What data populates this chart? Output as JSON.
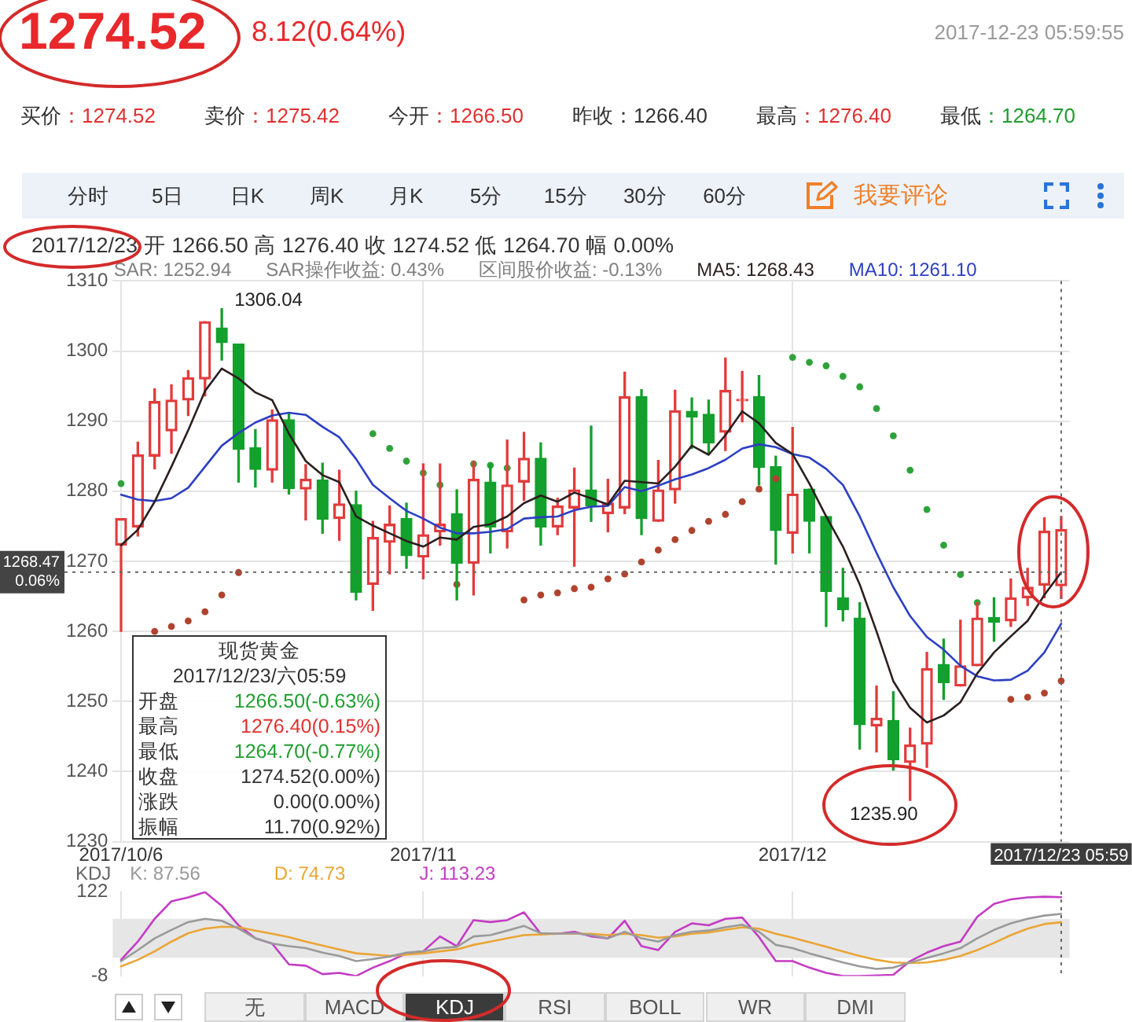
{
  "chart_data": [
    {
      "type": "other",
      "title": "1274.52",
      "subtitle": "8.12(0.64%)",
      "annotations": [
        "2017-12-23 05:59:55"
      ],
      "categories": [
        "买价",
        "卖价",
        "今开",
        "昨收",
        "最高",
        "最低"
      ],
      "value_labels": [
        "：1274.52",
        "：1275.42",
        "：1266.50",
        "：1266.40",
        "：1276.40",
        "：1264.70"
      ],
      "colors": [
        "#e0312f",
        "#e0312f",
        "#e0312f",
        "#333333",
        "#e0312f",
        "#1f9e2f"
      ]
    },
    {
      "type": "other",
      "annotations": [
        "分时",
        "5日",
        "日K",
        "周K",
        "月K",
        "5分",
        "15分",
        "30分",
        "60分",
        "我要评论"
      ]
    },
    {
      "type": "candlestick",
      "title": "2017/12/23 开 1266.50 高 1276.40 收 1274.52 低 1264.70 幅 0.00%",
      "categories": [
        "2017/10/6",
        null,
        null,
        null,
        null,
        null,
        null,
        null,
        null,
        null,
        null,
        null,
        null,
        null,
        null,
        null,
        null,
        null,
        "2017/11",
        null,
        null,
        null,
        null,
        null,
        null,
        null,
        null,
        null,
        null,
        null,
        null,
        null,
        null,
        null,
        null,
        null,
        null,
        null,
        null,
        null,
        "2017/12",
        null,
        null,
        null,
        null,
        null,
        null,
        null,
        null,
        null,
        null,
        null,
        null,
        null,
        null,
        null,
        "2017/12/23 05:59"
      ],
      "ohlc": [
        [
          1272.3,
          1276.1,
          1260.0,
          1276.1
        ],
        [
          1274.9,
          1287.0,
          1273.6,
          1285.2
        ],
        [
          1285.0,
          1294.6,
          1283.2,
          1292.8
        ],
        [
          1288.6,
          1295.2,
          1285.4,
          1293.0
        ],
        [
          1293.0,
          1297.2,
          1290.8,
          1296.2
        ],
        [
          1296.0,
          1304.2,
          1293.6,
          1304.2
        ],
        [
          1303.3,
          1306.04,
          1298.7,
          1301.2
        ],
        [
          1301.0,
          1301.0,
          1281.3,
          1286.0
        ],
        [
          1286.2,
          1288.8,
          1280.6,
          1283.1
        ],
        [
          1283.0,
          1291.6,
          1281.3,
          1290.2
        ],
        [
          1290.2,
          1291.0,
          1279.6,
          1280.4
        ],
        [
          1280.3,
          1283.8,
          1275.9,
          1281.7
        ],
        [
          1281.6,
          1284.0,
          1274.0,
          1276.0
        ],
        [
          1276.1,
          1283.0,
          1273.0,
          1278.2
        ],
        [
          1278.1,
          1280.0,
          1264.5,
          1265.6
        ],
        [
          1266.7,
          1275.7,
          1263.0,
          1273.4
        ],
        [
          1272.7,
          1277.9,
          1268.2,
          1275.3
        ],
        [
          1276.1,
          1278.3,
          1269.0,
          1270.8
        ],
        [
          1270.6,
          1283.9,
          1267.5,
          1273.8
        ],
        [
          1274.2,
          1283.9,
          1272.3,
          1275.3
        ],
        [
          1276.8,
          1280.2,
          1264.5,
          1269.7
        ],
        [
          1269.7,
          1284.3,
          1265.2,
          1281.7
        ],
        [
          1281.3,
          1283.9,
          1271.2,
          1274.9
        ],
        [
          1274.2,
          1287.3,
          1271.9,
          1280.9
        ],
        [
          1281.3,
          1288.4,
          1278.7,
          1284.7
        ],
        [
          1284.7,
          1286.9,
          1272.3,
          1274.9
        ],
        [
          1274.9,
          1279.0,
          1273.8,
          1277.9
        ],
        [
          1277.6,
          1283.3,
          1269.3,
          1280.2
        ],
        [
          1280.2,
          1289.3,
          1275.7,
          1277.9
        ],
        [
          1276.8,
          1281.7,
          1274.2,
          1278.3
        ],
        [
          1277.6,
          1297.0,
          1276.8,
          1293.5
        ],
        [
          1293.5,
          1294.5,
          1273.8,
          1276.1
        ],
        [
          1275.7,
          1284.4,
          1275.7,
          1280.2
        ],
        [
          1280.2,
          1294.4,
          1278.3,
          1291.5
        ],
        [
          1291.4,
          1293.3,
          1286.1,
          1290.6
        ],
        [
          1291.0,
          1293.0,
          1285.4,
          1286.9
        ],
        [
          1288.4,
          1299.0,
          1285.8,
          1294.4
        ],
        [
          1292.9,
          1297.1,
          1289.9,
          1293.0
        ],
        [
          1293.5,
          1296.5,
          1280.9,
          1283.4
        ],
        [
          1283.5,
          1285.0,
          1269.6,
          1274.4
        ],
        [
          1274.0,
          1289.1,
          1271.2,
          1279.6
        ],
        [
          1280.3,
          1280.3,
          1271.2,
          1275.7
        ],
        [
          1276.4,
          1276.4,
          1260.7,
          1265.7
        ],
        [
          1264.8,
          1269.0,
          1261.5,
          1263.1
        ],
        [
          1261.9,
          1264.1,
          1243.2,
          1246.7
        ],
        [
          1246.5,
          1252.2,
          1242.8,
          1247.6
        ],
        [
          1247.3,
          1251.4,
          1240.2,
          1241.7
        ],
        [
          1241.3,
          1246.2,
          1235.9,
          1243.8
        ],
        [
          1243.9,
          1257.0,
          1240.6,
          1254.7
        ],
        [
          1255.3,
          1258.9,
          1250.3,
          1252.7
        ],
        [
          1252.2,
          1261.6,
          1252.2,
          1255.1
        ],
        [
          1255.1,
          1264.1,
          1255.1,
          1261.9
        ],
        [
          1262.0,
          1264.8,
          1258.6,
          1261.3
        ],
        [
          1261.5,
          1267.5,
          1260.7,
          1264.8
        ],
        [
          1264.8,
          1269.0,
          1263.7,
          1266.3
        ],
        [
          1266.6,
          1276.2,
          1264.8,
          1274.3
        ],
        [
          1266.5,
          1276.4,
          1264.7,
          1274.52
        ]
      ],
      "value_labels": [
        null,
        null,
        null,
        null,
        null,
        null,
        "1306.04",
        null,
        null,
        null,
        null,
        null,
        null,
        null,
        null,
        null,
        null,
        null,
        null,
        null,
        null,
        null,
        null,
        null,
        null,
        null,
        null,
        null,
        null,
        null,
        null,
        null,
        null,
        null,
        null,
        null,
        null,
        null,
        null,
        null,
        null,
        null,
        null,
        null,
        null,
        null,
        null,
        "1235.90",
        null,
        null,
        null,
        null,
        null,
        null,
        null,
        null,
        null
      ],
      "colors": [
        "#e23b3b",
        "#e23b3b",
        "#e23b3b",
        "#e23b3b",
        "#e23b3b",
        "#e23b3b",
        "#13a02c",
        "#13a02c",
        "#13a02c",
        "#e23b3b",
        "#13a02c",
        "#e23b3b",
        "#13a02c",
        "#e23b3b",
        "#13a02c",
        "#e23b3b",
        "#e23b3b",
        "#13a02c",
        "#e23b3b",
        "#e23b3b",
        "#13a02c",
        "#e23b3b",
        "#13a02c",
        "#e23b3b",
        "#e23b3b",
        "#13a02c",
        "#e23b3b",
        "#e23b3b",
        "#13a02c",
        "#e23b3b",
        "#e23b3b",
        "#13a02c",
        "#e23b3b",
        "#e23b3b",
        "#13a02c",
        "#13a02c",
        "#e23b3b",
        "#e23b3b",
        "#13a02c",
        "#13a02c",
        "#e23b3b",
        "#13a02c",
        "#13a02c",
        "#13a02c",
        "#13a02c",
        "#e23b3b",
        "#13a02c",
        "#e23b3b",
        "#e23b3b",
        "#13a02c",
        "#e23b3b",
        "#e23b3b",
        "#13a02c",
        "#e23b3b",
        "#e23b3b",
        "#e23b3b",
        "#e23b3b"
      ],
      "series": [
        {
          "name": "MA5: 1268.43",
          "type": "line",
          "color": "#2b1f1f",
          "values": [
            1272.3,
            1274.5,
            1278.5,
            1283.5,
            1288.7,
            1294.3,
            1297.5,
            1296.1,
            1294.1,
            1293.0,
            1288.2,
            1284.3,
            1282.3,
            1281.3,
            1276.4,
            1275.1,
            1274.0,
            1272.9,
            1272.1,
            1273.4,
            1273.1,
            1274.9,
            1275.3,
            1276.4,
            1278.3,
            1279.4,
            1278.5,
            1279.8,
            1279.0,
            1278.1,
            1281.5,
            1281.3,
            1281.1,
            1283.5,
            1286.5,
            1285.2,
            1288.0,
            1291.4,
            1289.7,
            1286.9,
            1285.3,
            1281.1,
            1276.4,
            1272.1,
            1266.7,
            1260.0,
            1252.9,
            1249.1,
            1247.0,
            1248.0,
            1249.9,
            1254.0,
            1257.0,
            1259.3,
            1261.5,
            1265.2,
            1268.43
          ]
        },
        {
          "name": "MA10: 1261.10",
          "type": "line",
          "color": "#2c3fc2",
          "values": [
            1279.5,
            1278.8,
            1278.6,
            1279.0,
            1280.5,
            1283.5,
            1286.5,
            1288.3,
            1289.8,
            1290.8,
            1291.2,
            1290.9,
            1289.2,
            1287.7,
            1284.6,
            1280.9,
            1279.0,
            1277.2,
            1276.1,
            1274.8,
            1274.0,
            1274.0,
            1274.2,
            1274.6,
            1276.1,
            1276.3,
            1276.4,
            1277.3,
            1277.8,
            1277.9,
            1280.6,
            1280.0,
            1280.8,
            1281.7,
            1282.4,
            1283.3,
            1284.5,
            1286.1,
            1286.7,
            1286.3,
            1285.3,
            1284.8,
            1283.2,
            1280.9,
            1276.4,
            1271.2,
            1266.3,
            1262.2,
            1259.2,
            1257.4,
            1255.1,
            1253.6,
            1253.0,
            1253.1,
            1254.4,
            1257.0,
            1261.1
          ]
        },
        {
          "type": "scatter",
          "marker": "circle",
          "colors": [
            "#2ea33a",
            null,
            "#b0432e",
            "#b0432e",
            "#b0432e",
            "#b0432e",
            "#b0432e",
            "#b0432e",
            null,
            null,
            null,
            null,
            null,
            null,
            null,
            "#2ea33a",
            "#2ea33a",
            "#2ea33a",
            "#2ea33a",
            "#2ea33a",
            "#b0432e",
            "#2ea33a",
            "#2ea33a",
            "#2ea33a",
            "#b0432e",
            "#b0432e",
            "#b0432e",
            "#b0432e",
            "#b0432e",
            "#b0432e",
            "#b0432e",
            "#b0432e",
            "#b0432e",
            "#b0432e",
            "#b0432e",
            "#b0432e",
            "#b0432e",
            "#b0432e",
            "#b0432e",
            "#b0432e",
            "#2ea33a",
            "#2ea33a",
            "#2ea33a",
            "#2ea33a",
            "#2ea33a",
            "#2ea33a",
            "#2ea33a",
            "#2ea33a",
            "#2ea33a",
            "#2ea33a",
            "#2ea33a",
            "#2ea33a",
            null,
            "#b0432e",
            "#b0432e",
            "#b0432e",
            "#b0432e"
          ],
          "values": [
            1281.1,
            null,
            1260.0,
            1260.7,
            1261.5,
            1262.8,
            1265.2,
            1268.4,
            null,
            null,
            null,
            null,
            null,
            null,
            null,
            1288.2,
            1286.1,
            1284.3,
            1282.6,
            1280.9,
            1266.7,
            1283.9,
            1283.7,
            1283.3,
            1264.5,
            1265.2,
            1265.5,
            1266.1,
            1266.3,
            1267.5,
            1268.2,
            1269.9,
            1271.6,
            1273.1,
            1274.4,
            1275.7,
            1276.7,
            1278.5,
            1280.3,
            1281.8,
            1299.1,
            1298.4,
            1297.9,
            1296.4,
            1294.9,
            1291.8,
            1287.9,
            1283.0,
            1277.4,
            1272.3,
            1268.1,
            1264.1,
            null,
            1250.3,
            1250.6,
            1251.2,
            1252.94
          ]
        }
      ],
      "annotations": [
        "SAR: 1252.94",
        "SAR操作收益: 0.43%",
        "区间股价收益: -0.13%"
      ],
      "ref_lines": [
        {
          "axis": "y",
          "value": 1268.47,
          "label": "1268.47 0.06%",
          "line_style": "dotted"
        },
        {
          "axis": "x",
          "value": "2017/12/23 05:59",
          "line_style": "dotted"
        }
      ],
      "ylim": [
        1230,
        1310
      ],
      "yticks": [
        1230,
        1240,
        1250,
        1260,
        1270,
        1280,
        1290,
        1300,
        1310
      ],
      "grid": true,
      "legend": "top left"
    },
    {
      "type": "other",
      "title": "现货黄金",
      "subtitle": "2017/12/23/六05:59",
      "categories": [
        "开盘",
        "最高",
        "最低",
        "收盘",
        "涨跌",
        "振幅"
      ],
      "value_labels": [
        "1266.50(-0.63%)",
        "1276.40(0.15%)",
        "1264.70(-0.77%)",
        "1274.52(0.00%)",
        "0.00(0.00%)",
        "11.70(0.92%)"
      ],
      "colors": [
        "#1f9e2f",
        "#e0312f",
        "#1f9e2f",
        "#333333",
        "#333333",
        "#333333"
      ]
    },
    {
      "type": "line",
      "title": "KDJ",
      "categories": [
        "2017/10/6",
        null,
        null,
        null,
        null,
        null,
        null,
        null,
        null,
        null,
        null,
        null,
        null,
        null,
        null,
        null,
        null,
        null,
        "2017/11",
        null,
        null,
        null,
        null,
        null,
        null,
        null,
        null,
        null,
        null,
        null,
        null,
        null,
        null,
        null,
        null,
        null,
        null,
        null,
        null,
        null,
        "2017/12",
        null,
        null,
        null,
        null,
        null,
        null,
        null,
        null,
        null,
        null,
        null,
        null,
        null,
        null,
        null,
        "2017/12/23 05:59"
      ],
      "series": [
        {
          "name": "K: 87.56",
          "color": "#9a9a9a",
          "values": [
            15,
            32,
            50,
            63,
            75,
            80,
            77,
            65,
            50,
            42,
            38,
            35,
            28,
            23,
            15,
            18,
            22,
            28,
            30,
            35,
            37,
            53,
            55,
            62,
            69,
            58,
            57,
            58,
            55,
            50,
            60,
            50,
            45,
            55,
            60,
            62,
            67,
            71,
            60,
            40,
            35,
            27,
            20,
            13,
            7,
            3,
            5,
            13,
            20,
            27,
            35,
            50,
            63,
            73,
            80,
            85,
            87.56
          ]
        },
        {
          "name": "D: 74.73",
          "color": "#eba536",
          "values": [
            7,
            17,
            30,
            45,
            58,
            65,
            68,
            67,
            62,
            57,
            52,
            45,
            39,
            33,
            27,
            25,
            23,
            25,
            27,
            30,
            33,
            40,
            45,
            50,
            55,
            56,
            57,
            57,
            57,
            55,
            57,
            55,
            51,
            53,
            57,
            59,
            63,
            67,
            65,
            57,
            51,
            44,
            37,
            30,
            23,
            17,
            13,
            12,
            13,
            17,
            23,
            32,
            43,
            55,
            65,
            72,
            74.73
          ]
        },
        {
          "name": "J: 113.23",
          "color": "#c43bc4",
          "values": [
            17,
            45,
            80,
            107,
            113,
            121,
            100,
            70,
            50,
            42,
            10,
            8,
            -5,
            -3,
            -8,
            5,
            15,
            27,
            30,
            53,
            38,
            78,
            75,
            78,
            90,
            57,
            57,
            60,
            53,
            50,
            77,
            38,
            32,
            60,
            73,
            70,
            80,
            82,
            52,
            15,
            15,
            5,
            -3,
            -8,
            -8,
            -7,
            -6,
            15,
            28,
            38,
            45,
            83,
            103,
            110,
            113,
            114,
            113.23
          ]
        }
      ],
      "bands": [
        {
          "axis": "y",
          "from": 20,
          "to": 80,
          "color": "#e6e6e6"
        }
      ],
      "ref_lines": [
        {
          "axis": "x",
          "value": "2017/12/23 05:59",
          "line_style": "dotted"
        }
      ],
      "ylim": [
        -8,
        122
      ],
      "yticks": [
        -8,
        122
      ],
      "grid": "x",
      "legend": "top left",
      "tick_labels": "y"
    },
    {
      "type": "other",
      "annotations": [
        "无",
        "MACD",
        "KDJ",
        "RSI",
        "BOLL",
        "WR",
        "DMI"
      ]
    }
  ]
}
